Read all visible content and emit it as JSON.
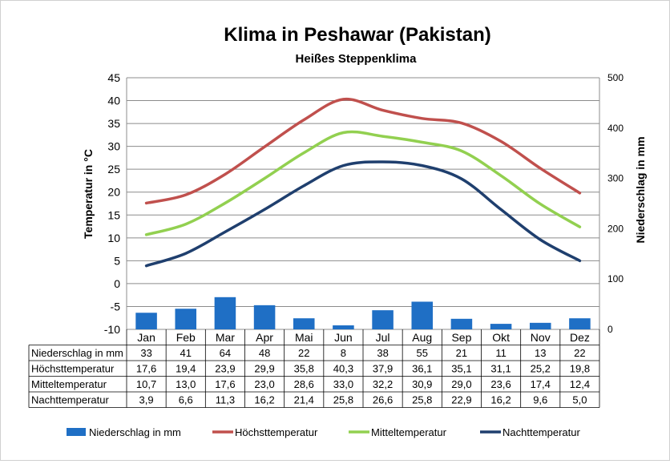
{
  "chart_data": {
    "type": "bar",
    "title": "Klima in Peshawar (Pakistan)",
    "subtitle": "Heißes Steppenklima",
    "ylabel_left": "Temperatur in °C",
    "ylabel_right": "Niederschlag in mm",
    "ylim_left": [
      -10,
      45
    ],
    "yticks_left": [
      -10,
      -5,
      0,
      5,
      10,
      15,
      20,
      25,
      30,
      35,
      40,
      45
    ],
    "ylim_right": [
      0,
      500
    ],
    "yticks_right": [
      0,
      100,
      200,
      300,
      400,
      500
    ],
    "grid": true,
    "legend_position": "bottom",
    "categories": [
      "Jan",
      "Feb",
      "Mar",
      "Apr",
      "Mai",
      "Jun",
      "Jul",
      "Aug",
      "Sep",
      "Okt",
      "Nov",
      "Dez"
    ],
    "series": [
      {
        "name": "Niederschlag in mm",
        "kind": "bar",
        "axis": "right",
        "color": "#1f6fc5",
        "values": [
          33,
          41,
          64,
          48,
          22,
          8,
          38,
          55,
          21,
          11,
          13,
          22
        ],
        "labels": [
          "33",
          "41",
          "64",
          "48",
          "22",
          "8",
          "38",
          "55",
          "21",
          "11",
          "13",
          "22"
        ]
      },
      {
        "name": "Höchsttemperatur",
        "kind": "line",
        "axis": "left",
        "color": "#c0504d",
        "values": [
          17.6,
          19.4,
          23.9,
          29.9,
          35.8,
          40.3,
          37.9,
          36.1,
          35.1,
          31.1,
          25.2,
          19.8
        ],
        "labels": [
          "17,6",
          "19,4",
          "23,9",
          "29,9",
          "35,8",
          "40,3",
          "37,9",
          "36,1",
          "35,1",
          "31,1",
          "25,2",
          "19,8"
        ]
      },
      {
        "name": "Mitteltemperatur",
        "kind": "line",
        "axis": "left",
        "color": "#92d050",
        "values": [
          10.7,
          13.0,
          17.6,
          23.0,
          28.6,
          33.0,
          32.2,
          30.9,
          29.0,
          23.6,
          17.4,
          12.4
        ],
        "labels": [
          "10,7",
          "13,0",
          "17,6",
          "23,0",
          "28,6",
          "33,0",
          "32,2",
          "30,9",
          "29,0",
          "23,6",
          "17,4",
          "12,4"
        ]
      },
      {
        "name": "Nachttemperatur",
        "kind": "line",
        "axis": "left",
        "color": "#1f3f6e",
        "values": [
          3.9,
          6.6,
          11.3,
          16.2,
          21.4,
          25.8,
          26.6,
          25.8,
          22.9,
          16.2,
          9.6,
          5.0
        ],
        "labels": [
          "3,9",
          "6,6",
          "11,3",
          "16,2",
          "21,4",
          "25,8",
          "26,6",
          "25,8",
          "22,9",
          "16,2",
          "9,6",
          "5,0"
        ]
      }
    ]
  }
}
